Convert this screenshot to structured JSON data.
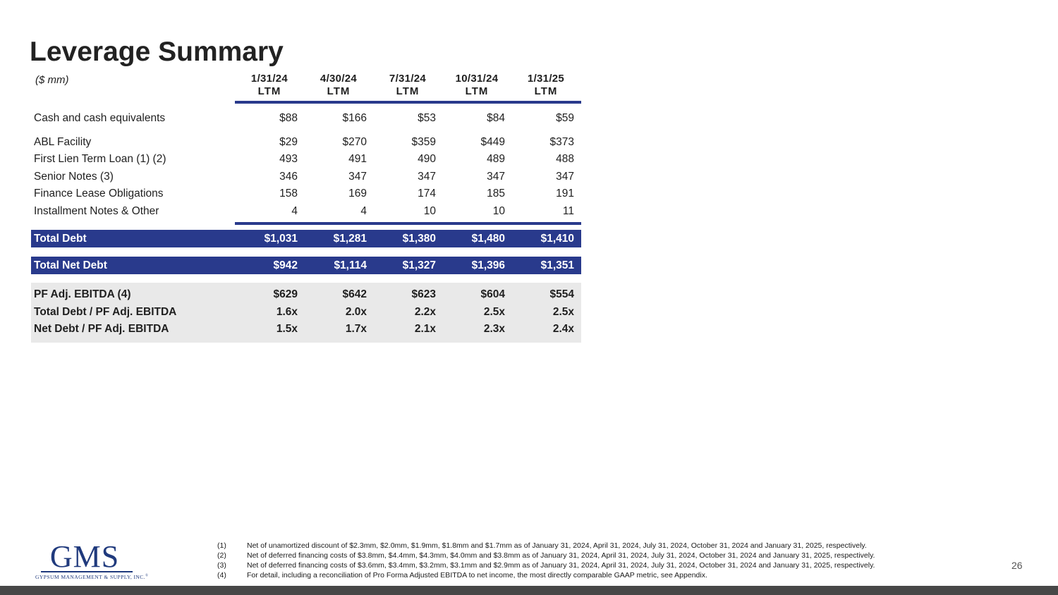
{
  "slide": {
    "title": "Leverage Summary",
    "units_label": "($ mm)",
    "page_number": "26"
  },
  "colors": {
    "accent_blue": "#293a8c",
    "section_gray": "#e9e9e9",
    "bottom_bar_gray": "#474747",
    "logo_navy": "#203a7d"
  },
  "table": {
    "columns": [
      {
        "date": "1/31/24",
        "period": "LTM"
      },
      {
        "date": "4/30/24",
        "period": "LTM"
      },
      {
        "date": "7/31/24",
        "period": "LTM"
      },
      {
        "date": "10/31/24",
        "period": "LTM"
      },
      {
        "date": "1/31/25",
        "period": "LTM"
      }
    ],
    "rows": [
      {
        "label": "Cash and cash equivalents",
        "values": [
          "$88",
          "$166",
          "$53",
          "$84",
          "$59"
        ]
      },
      {
        "label": "ABL Facility",
        "values": [
          "$29",
          "$270",
          "$359",
          "$449",
          "$373"
        ]
      },
      {
        "label": "First Lien Term Loan (1) (2)",
        "values": [
          "493",
          "491",
          "490",
          "489",
          "488"
        ]
      },
      {
        "label": "Senior Notes (3)",
        "values": [
          "346",
          "347",
          "347",
          "347",
          "347"
        ]
      },
      {
        "label": "Finance Lease Obligations",
        "values": [
          "158",
          "169",
          "174",
          "185",
          "191"
        ]
      },
      {
        "label": "Installment Notes & Other",
        "values": [
          "4",
          "4",
          "10",
          "10",
          "11"
        ]
      }
    ],
    "total_debt": {
      "label": "Total Debt",
      "values": [
        "$1,031",
        "$1,281",
        "$1,380",
        "$1,480",
        "$1,410"
      ]
    },
    "total_net_debt": {
      "label": "Total Net Debt",
      "values": [
        "$942",
        "$1,114",
        "$1,327",
        "$1,396",
        "$1,351"
      ]
    },
    "ebitda_rows": [
      {
        "label": "PF Adj. EBITDA (4)",
        "values": [
          "$629",
          "$642",
          "$623",
          "$604",
          "$554"
        ]
      },
      {
        "label": "Total Debt / PF Adj. EBITDA",
        "values": [
          "1.6x",
          "2.0x",
          "2.2x",
          "2.5x",
          "2.5x"
        ]
      },
      {
        "label": "Net Debt / PF Adj. EBITDA",
        "values": [
          "1.5x",
          "1.7x",
          "2.1x",
          "2.3x",
          "2.4x"
        ]
      }
    ]
  },
  "footnotes": [
    {
      "num": "(1)",
      "text": "Net of unamortized discount of $2.3mm, $2.0mm, $1.9mm, $1.8mm and $1.7mm as of January 31, 2024, April 31, 2024, July 31, 2024, October 31, 2024 and January 31, 2025, respectively."
    },
    {
      "num": "(2)",
      "text": "Net of deferred financing costs of $3.8mm, $4.4mm, $4.3mm, $4.0mm and $3.8mm as of January 31, 2024, April 31, 2024, July 31, 2024, October 31, 2024 and January 31, 2025, respectively."
    },
    {
      "num": "(3)",
      "text": "Net of deferred financing costs of $3.6mm, $3.4mm, $3.2mm, $3.1mm and $2.9mm as of January 31, 2024, April 31, 2024, July 31, 2024, October 31, 2024 and January 31, 2025, respectively."
    },
    {
      "num": "(4)",
      "text": "For detail, including a reconciliation of Pro Forma Adjusted EBITDA to net income, the most directly comparable GAAP metric, see Appendix."
    }
  ],
  "logo": {
    "acronym": "GMS",
    "subtext": "GYPSUM MANAGEMENT & SUPPLY, INC.",
    "reg_mark": "®"
  }
}
